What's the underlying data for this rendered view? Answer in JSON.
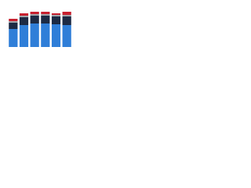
{
  "chart_data": {
    "type": "stacked_bar",
    "categories": [
      null,
      null,
      null,
      null,
      null,
      null
    ],
    "series": [
      {
        "color": "#2f7ed8",
        "values": [
          23,
          28,
          30,
          30,
          29,
          28
        ]
      },
      {
        "color": "#1c2a44",
        "values": [
          8,
          10,
          10,
          10,
          10,
          11
        ]
      },
      {
        "color": "#a0a4aa",
        "values": [
          2,
          2,
          2,
          2,
          2,
          2
        ]
      },
      {
        "color": "#c8202f",
        "values": [
          3,
          3,
          3,
          3,
          2,
          4
        ]
      }
    ],
    "ylim": [
      0,
      50
    ],
    "grid": false
  }
}
